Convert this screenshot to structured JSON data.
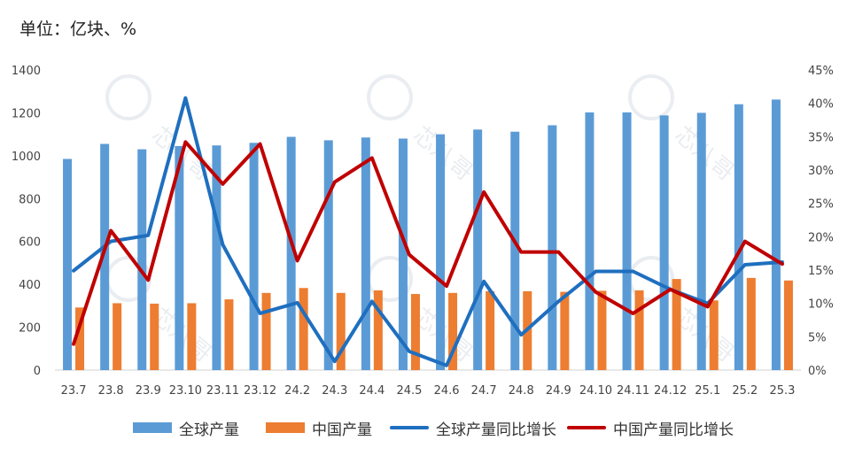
{
  "unit_label": "单位：亿块、%",
  "colors": {
    "global_bar": "#5b9bd5",
    "china_bar": "#ed7d31",
    "global_line": "#1f6fbf",
    "china_line": "#c00000",
    "grid": "#d9d9d9"
  },
  "legend": {
    "global_prod": "全球产量",
    "china_prod": "中国产量",
    "global_yoy": "全球产量同比增长",
    "china_yoy": "中国产量同比增长"
  },
  "watermark_text": "芯八哥",
  "chart_data": {
    "type": "bar",
    "categories": [
      "23.7",
      "23.8",
      "23.9",
      "23.10",
      "23.11",
      "23.12",
      "24.2",
      "24.3",
      "24.4",
      "24.5",
      "24.6",
      "24.7",
      "24.8",
      "24.9",
      "24.10",
      "24.11",
      "24.12",
      "25.1",
      "25.2",
      "25.3"
    ],
    "series": [
      {
        "name": "全球产量",
        "type": "bar",
        "axis": "left",
        "values": [
          985,
          1055,
          1030,
          1045,
          1048,
          1060,
          1088,
          1072,
          1085,
          1080,
          1100,
          1122,
          1112,
          1142,
          1202,
          1202,
          1188,
          1200,
          1240,
          1262
        ]
      },
      {
        "name": "中国产量",
        "type": "bar",
        "axis": "left",
        "values": [
          292,
          312,
          310,
          312,
          330,
          360,
          383,
          360,
          372,
          355,
          360,
          368,
          368,
          365,
          370,
          372,
          425,
          325,
          430,
          418
        ]
      },
      {
        "name": "全球产量同比增长",
        "type": "line",
        "axis": "right",
        "values": [
          14.9,
          19.3,
          20.2,
          40.8,
          18.8,
          8.5,
          10.1,
          1.3,
          10.3,
          2.8,
          0.7,
          13.3,
          5.3,
          10.3,
          14.8,
          14.8,
          12.1,
          10.0,
          15.8,
          16.2
        ]
      },
      {
        "name": "中国产量同比增长",
        "type": "line",
        "axis": "right",
        "values": [
          3.9,
          20.9,
          13.5,
          34.2,
          27.9,
          33.9,
          16.4,
          28.2,
          31.8,
          17.3,
          12.6,
          26.7,
          17.7,
          17.7,
          11.7,
          8.5,
          12.1,
          9.5,
          19.3,
          15.9
        ]
      }
    ],
    "ylim_left": [
      0,
      1400
    ],
    "yticks_left": [
      "0",
      "200",
      "400",
      "600",
      "800",
      "1000",
      "1200",
      "1400"
    ],
    "ylim_right": [
      0,
      45
    ],
    "yticks_right": [
      "0%",
      "5%",
      "10%",
      "15%",
      "20%",
      "25%",
      "30%",
      "35%",
      "40%",
      "45%"
    ],
    "grid": false,
    "legend_position": "bottom"
  }
}
